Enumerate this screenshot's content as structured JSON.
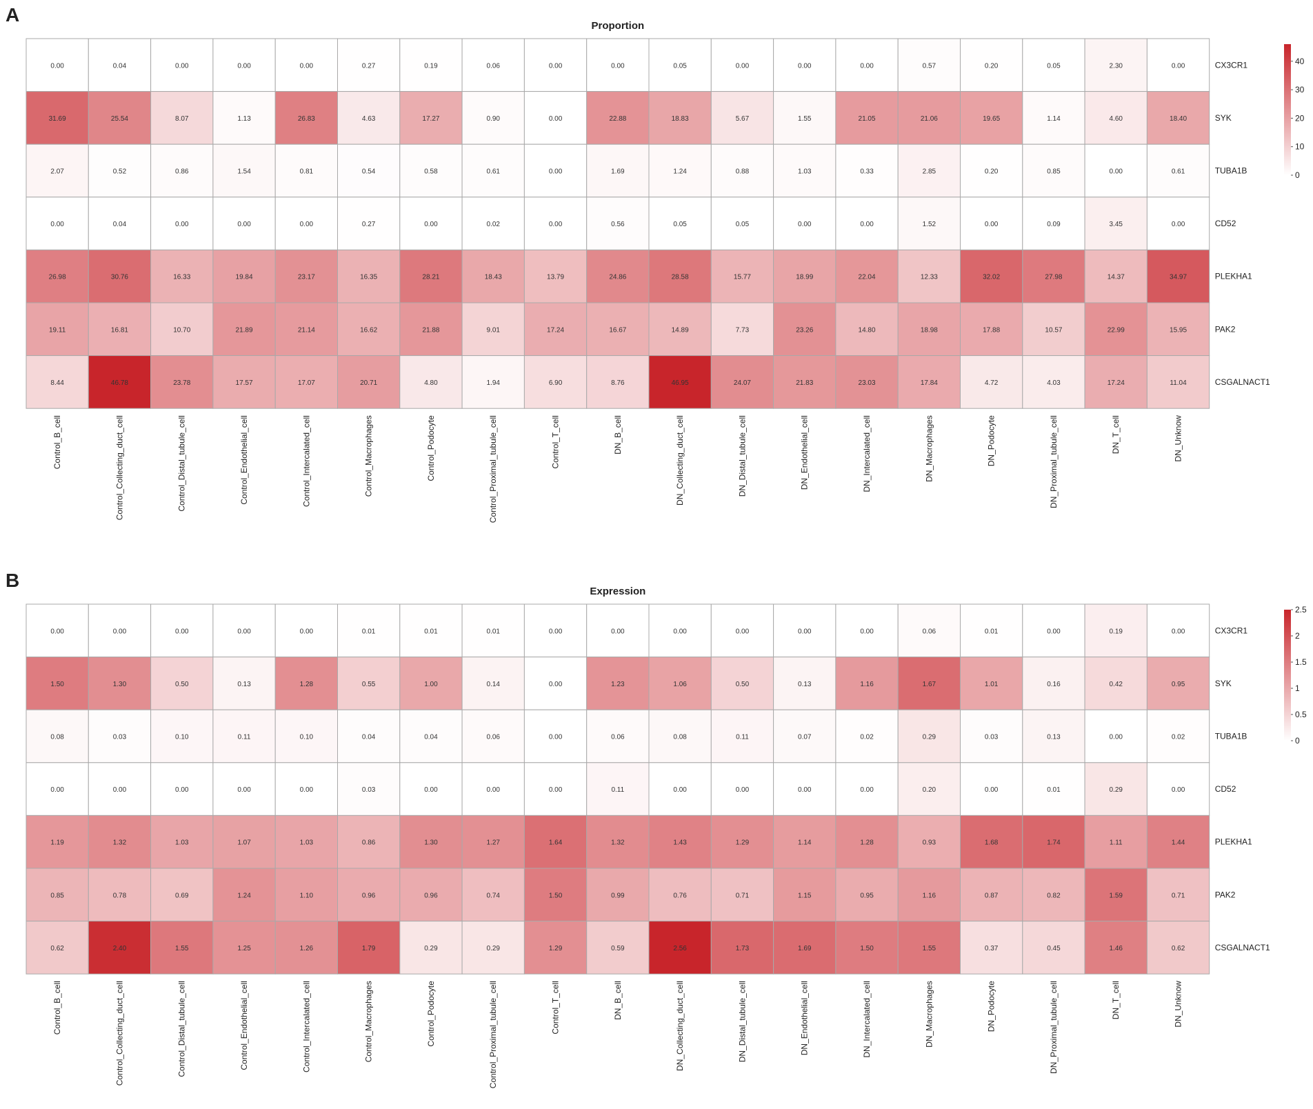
{
  "chart_data": [
    {
      "type": "heatmap",
      "panel": "A",
      "title": "Proportion",
      "rows": [
        "CX3CR1",
        "SYK",
        "TUBA1B",
        "CD52",
        "PLEKHA1",
        "PAK2",
        "CSGALNACT1"
      ],
      "columns": [
        "Control_B_cell",
        "Control_Collecting_duct_cell",
        "Control_Distal_tubule_cell",
        "Control_Endothelial_cell",
        "Control_Intercalated_cell",
        "Control_Macrophages",
        "Control_Podocyte",
        "Control_Proximal_tubule_cell",
        "Control_T_cell",
        "DN_B_cell",
        "DN_Collecting_duct_cell",
        "DN_Distal_tubule_cell",
        "DN_Endothelial_cell",
        "DN_Intercalated_cell",
        "DN_Macrophages",
        "DN_Podocyte",
        "DN_Proximal_tubule_cell",
        "DN_T_cell",
        "DN_Unknow"
      ],
      "values": [
        [
          0.0,
          0.04,
          0.0,
          0.0,
          0.0,
          0.27,
          0.19,
          0.06,
          0.0,
          0.0,
          0.05,
          0.0,
          0.0,
          0.0,
          0.57,
          0.2,
          0.05,
          2.3,
          0.0
        ],
        [
          31.69,
          25.54,
          8.07,
          1.13,
          26.83,
          4.63,
          17.27,
          0.9,
          0.0,
          22.88,
          18.83,
          5.67,
          1.55,
          21.05,
          21.06,
          19.65,
          1.14,
          4.6,
          18.4
        ],
        [
          2.07,
          0.52,
          0.86,
          1.54,
          0.81,
          0.54,
          0.58,
          0.61,
          0.0,
          1.69,
          1.24,
          0.88,
          1.03,
          0.33,
          2.85,
          0.2,
          0.85,
          0.0,
          0.61
        ],
        [
          0.0,
          0.04,
          0.0,
          0.0,
          0.0,
          0.27,
          0.0,
          0.02,
          0.0,
          0.56,
          0.05,
          0.05,
          0.0,
          0.0,
          1.52,
          0.0,
          0.09,
          3.45,
          0.0
        ],
        [
          26.98,
          30.76,
          16.33,
          19.84,
          23.17,
          16.35,
          28.21,
          18.43,
          13.79,
          24.86,
          28.58,
          15.77,
          18.99,
          22.04,
          12.33,
          32.02,
          27.98,
          14.37,
          34.97
        ],
        [
          19.11,
          16.81,
          10.7,
          21.89,
          21.14,
          16.62,
          21.88,
          9.01,
          17.24,
          16.67,
          14.89,
          7.73,
          23.26,
          14.8,
          18.98,
          17.88,
          10.57,
          22.99,
          15.95
        ],
        [
          8.44,
          46.78,
          23.78,
          17.57,
          17.07,
          20.71,
          4.8,
          1.94,
          6.9,
          8.76,
          46.95,
          24.07,
          21.83,
          23.03,
          17.84,
          4.72,
          4.03,
          17.24,
          11.04
        ]
      ],
      "value_labels": [
        [
          "0.00",
          "0.04",
          "0.00",
          "0.00",
          "0.00",
          "0.27",
          "0.19",
          "0.06",
          "0.00",
          "0.00",
          "0.05",
          "0.00",
          "0.00",
          "0.00",
          "0.57",
          "0.20",
          "0.05",
          "2.30",
          "0.00"
        ],
        [
          "31.69",
          "25.54",
          "8.07",
          "1.13",
          "26.83",
          "4.63",
          "17.27",
          "0.90",
          "0.00",
          "22.88",
          "18.83",
          "5.67",
          "1.55",
          "21.05",
          "21.06",
          "19.65",
          "1.14",
          "4.60",
          "18.40"
        ],
        [
          "2.07",
          "0.52",
          "0.86",
          "1.54",
          "0.81",
          "0.54",
          "0.58",
          "0.61",
          "0.00",
          "1.69",
          "1.24",
          "0.88",
          "1.03",
          "0.33",
          "2.85",
          "0.20",
          "0.85",
          "0.00",
          "0.61"
        ],
        [
          "0.00",
          "0.04",
          "0.00",
          "0.00",
          "0.00",
          "0.27",
          "0.00",
          "0.02",
          "0.00",
          "0.56",
          "0.05",
          "0.05",
          "0.00",
          "0.00",
          "1.52",
          "0.00",
          "0.09",
          "3.45",
          "0.00"
        ],
        [
          "26.98",
          "30.76",
          "16.33",
          "19.84",
          "23.17",
          "16.35",
          "28.21",
          "18.43",
          "13.79",
          "24.86",
          "28.58",
          "15.77",
          "18.99",
          "22.04",
          "12.33",
          "32.02",
          "27.98",
          "14.37",
          "34.97"
        ],
        [
          "19.11",
          "16.81",
          "10.70",
          "21.89",
          "21.14",
          "16.62",
          "21.88",
          "9.01",
          "17.24",
          "16.67",
          "14.89",
          "7.73",
          "23.26",
          "14.80",
          "18.98",
          "17.88",
          "10.57",
          "22.99",
          "15.95"
        ],
        [
          "8.44",
          "46.78",
          "23.78",
          "17.57",
          "17.07",
          "20.71",
          "4.80",
          "1.94",
          "6.90",
          "8.76",
          "46.95",
          "24.07",
          "21.83",
          "23.03",
          "17.84",
          "4.72",
          "4.03",
          "17.24",
          "11.04"
        ]
      ],
      "color_scale": {
        "min": 0,
        "max": 46,
        "low_color": "#ffffff",
        "high_color": "#c8252b"
      },
      "legend_ticks": [
        0,
        10,
        20,
        30,
        40
      ],
      "legend_labels": [
        "0",
        "10",
        "20",
        "30",
        "40"
      ],
      "legend_position": "top-right"
    },
    {
      "type": "heatmap",
      "panel": "B",
      "title": "Expression",
      "rows": [
        "CX3CR1",
        "SYK",
        "TUBA1B",
        "CD52",
        "PLEKHA1",
        "PAK2",
        "CSGALNACT1"
      ],
      "columns": [
        "Control_B_cell",
        "Control_Collecting_duct_cell",
        "Control_Distal_tubule_cell",
        "Control_Endothelial_cell",
        "Control_Intercalated_cell",
        "Control_Macrophages",
        "Control_Podocyte",
        "Control_Proximal_tubule_cell",
        "Control_T_cell",
        "DN_B_cell",
        "DN_Collecting_duct_cell",
        "DN_Distal_tubule_cell",
        "DN_Endothelial_cell",
        "DN_Intercalated_cell",
        "DN_Macrophages",
        "DN_Podocyte",
        "DN_Proximal_tubule_cell",
        "DN_T_cell",
        "DN_Unknow"
      ],
      "values": [
        [
          0.0,
          0.0,
          0.0,
          0.0,
          0.0,
          0.01,
          0.01,
          0.01,
          0.0,
          0.0,
          0.0,
          0.0,
          0.0,
          0.0,
          0.06,
          0.01,
          0.0,
          0.19,
          0.0
        ],
        [
          1.5,
          1.3,
          0.5,
          0.13,
          1.28,
          0.55,
          1.0,
          0.14,
          0.0,
          1.23,
          1.06,
          0.5,
          0.13,
          1.16,
          1.67,
          1.01,
          0.16,
          0.42,
          0.95
        ],
        [
          0.08,
          0.03,
          0.1,
          0.11,
          0.1,
          0.04,
          0.04,
          0.06,
          0.0,
          0.06,
          0.08,
          0.11,
          0.07,
          0.02,
          0.29,
          0.03,
          0.13,
          0.0,
          0.02
        ],
        [
          0.0,
          0.0,
          0.0,
          0.0,
          0.0,
          0.03,
          0.0,
          0.0,
          0.0,
          0.11,
          0.0,
          0.0,
          0.0,
          0.0,
          0.2,
          0.0,
          0.01,
          0.29,
          0.0
        ],
        [
          1.19,
          1.32,
          1.03,
          1.07,
          1.03,
          0.86,
          1.3,
          1.27,
          1.64,
          1.32,
          1.43,
          1.29,
          1.14,
          1.28,
          0.93,
          1.68,
          1.74,
          1.11,
          1.44
        ],
        [
          0.85,
          0.78,
          0.69,
          1.24,
          1.1,
          0.96,
          0.96,
          0.74,
          1.5,
          0.99,
          0.76,
          0.71,
          1.15,
          0.95,
          1.16,
          0.87,
          0.82,
          1.59,
          0.71
        ],
        [
          0.62,
          2.4,
          1.55,
          1.25,
          1.26,
          1.79,
          0.29,
          0.29,
          1.29,
          0.59,
          2.56,
          1.73,
          1.69,
          1.5,
          1.55,
          0.37,
          0.45,
          1.46,
          0.62
        ]
      ],
      "value_labels": [
        [
          "0.00",
          "0.00",
          "0.00",
          "0.00",
          "0.00",
          "0.01",
          "0.01",
          "0.01",
          "0.00",
          "0.00",
          "0.00",
          "0.00",
          "0.00",
          "0.00",
          "0.06",
          "0.01",
          "0.00",
          "0.19",
          "0.00"
        ],
        [
          "1.50",
          "1.30",
          "0.50",
          "0.13",
          "1.28",
          "0.55",
          "1.00",
          "0.14",
          "0.00",
          "1.23",
          "1.06",
          "0.50",
          "0.13",
          "1.16",
          "1.67",
          "1.01",
          "0.16",
          "0.42",
          "0.95"
        ],
        [
          "0.08",
          "0.03",
          "0.10",
          "0.11",
          "0.10",
          "0.04",
          "0.04",
          "0.06",
          "0.00",
          "0.06",
          "0.08",
          "0.11",
          "0.07",
          "0.02",
          "0.29",
          "0.03",
          "0.13",
          "0.00",
          "0.02"
        ],
        [
          "0.00",
          "0.00",
          "0.00",
          "0.00",
          "0.00",
          "0.03",
          "0.00",
          "0.00",
          "0.00",
          "0.11",
          "0.00",
          "0.00",
          "0.00",
          "0.00",
          "0.20",
          "0.00",
          "0.01",
          "0.29",
          "0.00"
        ],
        [
          "1.19",
          "1.32",
          "1.03",
          "1.07",
          "1.03",
          "0.86",
          "1.30",
          "1.27",
          "1.64",
          "1.32",
          "1.43",
          "1.29",
          "1.14",
          "1.28",
          "0.93",
          "1.68",
          "1.74",
          "1.11",
          "1.44"
        ],
        [
          "0.85",
          "0.78",
          "0.69",
          "1.24",
          "1.10",
          "0.96",
          "0.96",
          "0.74",
          "1.50",
          "0.99",
          "0.76",
          "0.71",
          "1.15",
          "0.95",
          "1.16",
          "0.87",
          "0.82",
          "1.59",
          "0.71"
        ],
        [
          "0.62",
          "2.40",
          "1.55",
          "1.25",
          "1.26",
          "1.79",
          "0.29",
          "0.29",
          "1.29",
          "0.59",
          "2.56",
          "1.73",
          "1.69",
          "1.50",
          "1.55",
          "0.37",
          "0.45",
          "1.46",
          "0.62"
        ]
      ],
      "color_scale": {
        "min": 0,
        "max": 2.5,
        "low_color": "#ffffff",
        "high_color": "#c8252b"
      },
      "legend_ticks": [
        0,
        0.5,
        1,
        1.5,
        2,
        2.5
      ],
      "legend_labels": [
        "0",
        "0.5",
        "1",
        "1.5",
        "2",
        "2.5"
      ],
      "legend_position": "top-right"
    }
  ]
}
